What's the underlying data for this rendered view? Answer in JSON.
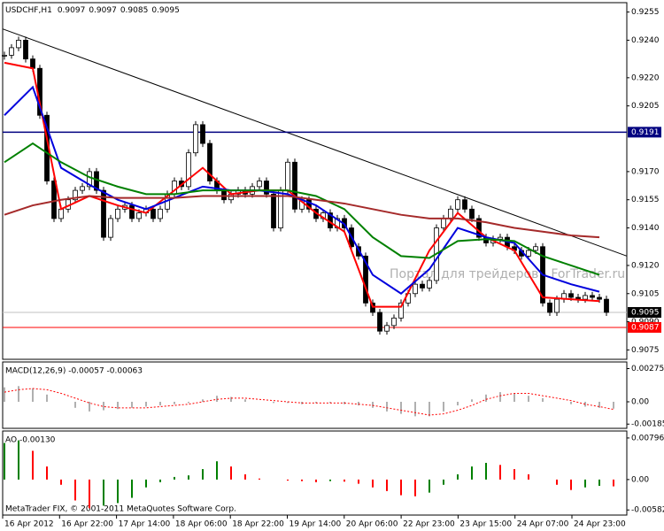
{
  "chart_data": {
    "type": "candlestick",
    "symbol": "USDCHF,H1",
    "ohlc": [
      0.9097,
      0.9097,
      0.9085,
      0.9095
    ],
    "watermark": "Портал для трейдеров - ForTrader.ru",
    "copyright": "MetaTrader FIX, © 2001-2011 MetaQuotes Software Corp.",
    "categories": [
      "16 Apr 2012",
      "16 Apr 22:00",
      "17 Apr 14:00",
      "18 Apr 06:00",
      "18 Apr 22:00",
      "19 Apr 14:00",
      "20 Apr 06:00",
      "22 Apr 23:00",
      "23 Apr 15:00",
      "24 Apr 07:00",
      "24 Apr 23:00"
    ],
    "ylim": [
      0.907,
      0.926
    ],
    "yticks": [
      0.9255,
      {
        "value": 0.924,
        "label": "0.9240"
      },
      {
        "value": 0.922,
        "label": "0.9220"
      },
      0.9205,
      {
        "value": 0.917,
        "label": "0.9170"
      },
      0.9155,
      {
        "value": 0.914,
        "label": "0.9140"
      },
      {
        "value": 0.912,
        "label": "0.9120"
      },
      0.9105,
      {
        "value": 0.909,
        "label": "0.9090"
      },
      0.9075
    ],
    "close": [
      0.9232,
      0.9236,
      0.924,
      0.923,
      0.9225,
      0.92,
      0.9165,
      0.9145,
      0.915,
      0.9155,
      0.916,
      0.9162,
      0.917,
      0.916,
      0.9135,
      0.9145,
      0.915,
      0.9152,
      0.9145,
      0.9148,
      0.915,
      0.9145,
      0.915,
      0.9158,
      0.9165,
      0.9162,
      0.918,
      0.9195,
      0.9185,
      0.9165,
      0.916,
      0.9155,
      0.9158,
      0.916,
      0.9158,
      0.9162,
      0.9165,
      0.9158,
      0.914,
      0.916,
      0.9175,
      0.915,
      0.9155,
      0.915,
      0.9145,
      0.9148,
      0.914,
      0.9145,
      0.914,
      0.913,
      0.9125,
      0.91,
      0.9095,
      0.9085,
      0.9088,
      0.9092,
      0.91,
      0.9105,
      0.911,
      0.9108,
      0.9112,
      0.914,
      0.9145,
      0.915,
      0.9155,
      0.915,
      0.9145,
      0.9135,
      0.9132,
      0.9134,
      0.9135,
      0.913,
      0.9128,
      0.9125,
      0.9128,
      0.913,
      0.91,
      0.9095,
      0.9102,
      0.9105,
      0.9103,
      0.9102,
      0.9104,
      0.9103,
      0.9102,
      0.9095
    ],
    "ma": [
      {
        "color": "#ff0000",
        "values": [
          0.9228,
          0.9225,
          0.915,
          0.9157,
          0.9152,
          0.9148,
          0.916,
          0.9172,
          0.9158,
          0.916,
          0.916,
          0.9148,
          0.9138,
          0.9098,
          0.9098,
          0.9128,
          0.9148,
          0.9135,
          0.9128,
          0.9103,
          0.9102,
          0.9101
        ]
      },
      {
        "color": "#0000dd",
        "values": [
          0.92,
          0.9215,
          0.9172,
          0.9163,
          0.9155,
          0.915,
          0.9156,
          0.9162,
          0.916,
          0.916,
          0.9158,
          0.9152,
          0.9142,
          0.9115,
          0.9105,
          0.9118,
          0.914,
          0.9135,
          0.9132,
          0.9115,
          0.911,
          0.9106
        ]
      },
      {
        "color": "#008000",
        "values": [
          0.9175,
          0.9185,
          0.9175,
          0.9167,
          0.9162,
          0.9158,
          0.9158,
          0.916,
          0.916,
          0.916,
          0.916,
          0.9157,
          0.915,
          0.9135,
          0.9125,
          0.9124,
          0.9133,
          0.9134,
          0.9133,
          0.9125,
          0.912,
          0.9115
        ]
      },
      {
        "color": "#a52a2a",
        "values": [
          0.9147,
          0.9152,
          0.9155,
          0.9157,
          0.9156,
          0.9156,
          0.9156,
          0.9157,
          0.9157,
          0.9157,
          0.9157,
          0.9155,
          0.9153,
          0.915,
          0.9147,
          0.9145,
          0.9145,
          0.9143,
          0.914,
          0.9138,
          0.9136,
          0.9135
        ]
      }
    ],
    "trendline": [
      0.9246,
      0.9125
    ],
    "levels": [
      {
        "value": 0.9191,
        "color": "#000080",
        "box": "#000080"
      },
      {
        "value": 0.9095,
        "color": "#c0c0c0",
        "box": "#000000"
      },
      {
        "value": 0.9087,
        "color": "#ff0000",
        "box": "#ff0000"
      }
    ],
    "macd": {
      "label": "MACD(12,26,9) -0.00057 -0.00063",
      "ylim": [
        -0.0022,
        0.0033
      ],
      "yticks": [
        0.00275,
        {
          "value": 0,
          "label": "0.00"
        },
        -0.00185
      ],
      "histogram": [
        0.0012,
        0.0013,
        0.0011,
        0.0006,
        0,
        -0.0005,
        -0.0008,
        -0.0007,
        -0.0006,
        -0.0005,
        -0.0004,
        -0.0003,
        -0.0002,
        -0.0001,
        0.0002,
        0.0005,
        0.0004,
        0.0002,
        0,
        -0.0001,
        -0.0001,
        -0.0002,
        -0.0001,
        -0.0001,
        -0.0002,
        -0.0003,
        -0.0005,
        -0.0008,
        -0.001,
        -0.0012,
        -0.0012,
        -0.0008,
        -0.0003,
        0.0002,
        0.0006,
        0.0008,
        0.0007,
        0.0005,
        0.0003,
        0,
        -0.0002,
        -0.0004,
        -0.0005,
        -0.00057
      ],
      "signal": [
        0.0008,
        0.001,
        0.0011,
        0.001,
        0.0007,
        0.0003,
        -0.0001,
        -0.0004,
        -0.0005,
        -0.0005,
        -0.0005,
        -0.0004,
        -0.0003,
        -0.0002,
        0,
        0.0002,
        0.0003,
        0.0003,
        0.0002,
        0.0001,
        0,
        -0.0001,
        -0.0001,
        -0.0001,
        -0.0001,
        -0.0002,
        -0.0003,
        -0.0005,
        -0.0007,
        -0.0009,
        -0.0011,
        -0.001,
        -0.0007,
        -0.0003,
        0.0002,
        0.0005,
        0.0007,
        0.0007,
        0.0005,
        0.0003,
        0.0001,
        -0.0002,
        -0.0004,
        -0.00063
      ]
    },
    "ao": {
      "label": "AO -0.00130",
      "ylim": [
        -0.0068,
        0.0093
      ],
      "yticks": [
        0.00796,
        {
          "value": 0,
          "label": "0.00"
        },
        -0.00582
      ],
      "up_color": "#008000",
      "down_color": "#ff0000",
      "values": [
        0.007,
        0.0075,
        0.0055,
        0.0025,
        -0.001,
        -0.004,
        -0.0055,
        -0.005,
        -0.0045,
        -0.0035,
        -0.0015,
        -0.0005,
        0.0005,
        0.0008,
        0.002,
        0.0035,
        0.0025,
        0.001,
        0.0002,
        0,
        -0.0002,
        -0.0003,
        -0.0005,
        -0.0003,
        -0.0004,
        -0.0008,
        -0.0015,
        -0.0022,
        -0.003,
        -0.0032,
        -0.0025,
        -0.001,
        0.001,
        0.0025,
        0.0032,
        0.0028,
        0.002,
        0.001,
        0,
        -0.001,
        -0.002,
        -0.0015,
        -0.0012,
        -0.0013
      ]
    }
  }
}
